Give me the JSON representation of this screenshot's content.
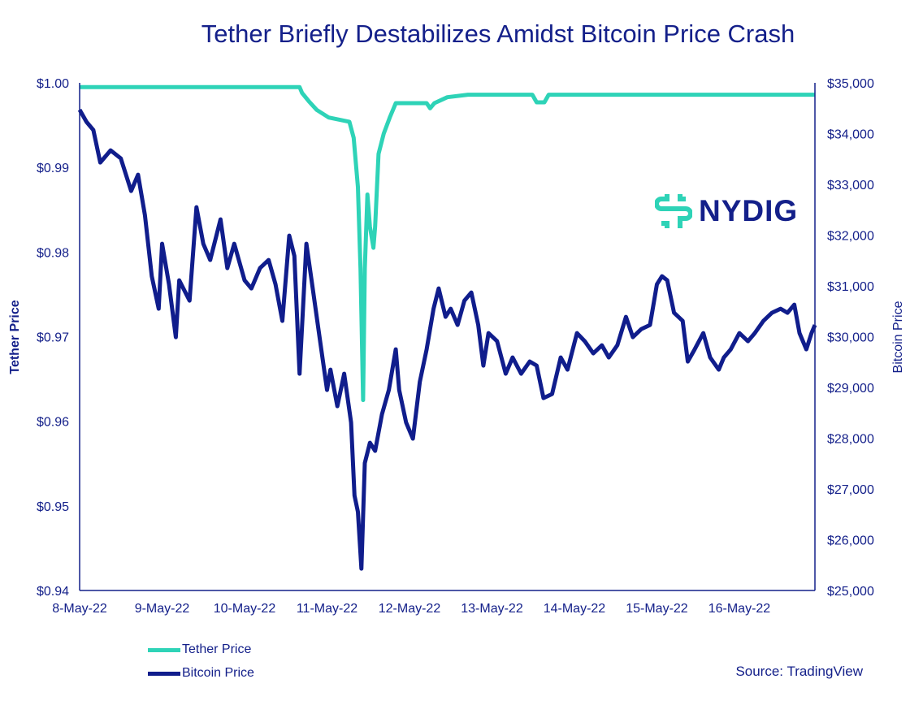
{
  "chart_data": {
    "type": "line",
    "title": "Tether Briefly Destabilizes Amidst Bitcoin Price Crash",
    "ylabel_left": "Tether Price",
    "ylabel_right": "Bitcoin Price",
    "ylim_left": [
      0.94,
      1.0
    ],
    "ylim_right": [
      25000,
      35000
    ],
    "xlim": [
      "2022-05-08T00:00",
      "2022-05-16T22:00"
    ],
    "left_ticks": [
      "$1.00",
      "$0.99",
      "$0.98",
      "$0.97",
      "$0.96",
      "$0.95",
      "$0.94"
    ],
    "left_tick_values": [
      1.0,
      0.99,
      0.98,
      0.97,
      0.96,
      0.95,
      0.94
    ],
    "right_ticks": [
      "$35,000",
      "$34,000",
      "$33,000",
      "$32,000",
      "$31,000",
      "$30,000",
      "$29,000",
      "$28,000",
      "$27,000",
      "$26,000",
      "$25,000"
    ],
    "right_tick_values": [
      35000,
      34000,
      33000,
      32000,
      31000,
      30000,
      29000,
      28000,
      27000,
      26000,
      25000
    ],
    "x_ticks": [
      "8-May-22",
      "9-May-22",
      "10-May-22",
      "11-May-22",
      "12-May-22",
      "13-May-22",
      "14-May-22",
      "15-May-22",
      "16-May-22"
    ],
    "x_tick_dates": [
      "2022-05-08T00:00",
      "2022-05-09T00:00",
      "2022-05-10T00:00",
      "2022-05-11T00:00",
      "2022-05-12T00:00",
      "2022-05-13T00:00",
      "2022-05-14T00:00",
      "2022-05-15T00:00",
      "2022-05-16T00:00"
    ],
    "grid": false,
    "legend_position": "bottom-left",
    "series": [
      {
        "name": "Tether Price",
        "axis": "left",
        "color": "#2ed3b7",
        "points": [
          [
            "2022-05-08T00:00",
            0.9995
          ],
          [
            "2022-05-10T16:00",
            0.9995
          ],
          [
            "2022-05-10T16:45",
            0.9988
          ],
          [
            "2022-05-10T18:45",
            0.9978
          ],
          [
            "2022-05-10T21:00",
            0.9968
          ],
          [
            "2022-05-11T00:30",
            0.9959
          ],
          [
            "2022-05-11T06:30",
            0.9954
          ],
          [
            "2022-05-11T07:45",
            0.9935
          ],
          [
            "2022-05-11T09:00",
            0.9877
          ],
          [
            "2022-05-11T09:45",
            0.978
          ],
          [
            "2022-05-11T10:30",
            0.9625
          ],
          [
            "2022-05-11T11:00",
            0.978
          ],
          [
            "2022-05-11T11:45",
            0.9868
          ],
          [
            "2022-05-11T12:30",
            0.983
          ],
          [
            "2022-05-11T13:30",
            0.9805
          ],
          [
            "2022-05-11T14:00",
            0.983
          ],
          [
            "2022-05-11T15:00",
            0.9916
          ],
          [
            "2022-05-11T16:30",
            0.994
          ],
          [
            "2022-05-11T18:15",
            0.9959
          ],
          [
            "2022-05-11T20:00",
            0.9976
          ],
          [
            "2022-05-12T05:00",
            0.9976
          ],
          [
            "2022-05-12T06:00",
            0.997
          ],
          [
            "2022-05-12T07:15",
            0.9976
          ],
          [
            "2022-05-12T11:00",
            0.9983
          ],
          [
            "2022-05-12T17:00",
            0.9986
          ],
          [
            "2022-05-13T11:45",
            0.9986
          ],
          [
            "2022-05-13T13:00",
            0.9977
          ],
          [
            "2022-05-13T15:15",
            0.9977
          ],
          [
            "2022-05-13T16:30",
            0.9986
          ],
          [
            "2022-05-16T22:00",
            0.9986
          ]
        ]
      },
      {
        "name": "Bitcoin Price",
        "axis": "right",
        "color": "#101d8c",
        "points": [
          [
            "2022-05-08T00:00",
            34470
          ],
          [
            "2022-05-08T02:00",
            34230
          ],
          [
            "2022-05-08T04:00",
            34070
          ],
          [
            "2022-05-08T06:00",
            33430
          ],
          [
            "2022-05-08T09:00",
            33670
          ],
          [
            "2022-05-08T12:00",
            33510
          ],
          [
            "2022-05-08T15:00",
            32870
          ],
          [
            "2022-05-08T17:00",
            33190
          ],
          [
            "2022-05-08T19:00",
            32390
          ],
          [
            "2022-05-08T21:00",
            31190
          ],
          [
            "2022-05-08T23:00",
            30550
          ],
          [
            "2022-05-09T00:00",
            31830
          ],
          [
            "2022-05-09T02:00",
            31030
          ],
          [
            "2022-05-09T04:00",
            29990
          ],
          [
            "2022-05-09T05:00",
            31110
          ],
          [
            "2022-05-09T08:00",
            30710
          ],
          [
            "2022-05-09T10:00",
            32550
          ],
          [
            "2022-05-09T12:00",
            31830
          ],
          [
            "2022-05-09T14:00",
            31510
          ],
          [
            "2022-05-09T17:00",
            32310
          ],
          [
            "2022-05-09T19:00",
            31350
          ],
          [
            "2022-05-09T21:00",
            31830
          ],
          [
            "2022-05-10T00:00",
            31110
          ],
          [
            "2022-05-10T02:00",
            30950
          ],
          [
            "2022-05-10T04:30",
            31350
          ],
          [
            "2022-05-10T07:00",
            31510
          ],
          [
            "2022-05-10T09:00",
            31030
          ],
          [
            "2022-05-10T11:00",
            30310
          ],
          [
            "2022-05-10T13:00",
            31990
          ],
          [
            "2022-05-10T14:30",
            31590
          ],
          [
            "2022-05-10T16:00",
            29270
          ],
          [
            "2022-05-10T18:00",
            31830
          ],
          [
            "2022-05-10T20:00",
            30870
          ],
          [
            "2022-05-10T22:00",
            29910
          ],
          [
            "2022-05-11T00:00",
            28950
          ],
          [
            "2022-05-11T01:00",
            29350
          ],
          [
            "2022-05-11T03:00",
            28630
          ],
          [
            "2022-05-11T05:00",
            29270
          ],
          [
            "2022-05-11T07:00",
            28310
          ],
          [
            "2022-05-11T08:00",
            26870
          ],
          [
            "2022-05-11T09:00",
            26550
          ],
          [
            "2022-05-11T10:00",
            25430
          ],
          [
            "2022-05-11T11:00",
            27510
          ],
          [
            "2022-05-11T12:30",
            27910
          ],
          [
            "2022-05-11T14:00",
            27750
          ],
          [
            "2022-05-11T16:00",
            28470
          ],
          [
            "2022-05-11T18:00",
            28950
          ],
          [
            "2022-05-11T20:00",
            29750
          ],
          [
            "2022-05-11T21:00",
            28950
          ],
          [
            "2022-05-11T23:00",
            28310
          ],
          [
            "2022-05-12T01:00",
            27990
          ],
          [
            "2022-05-12T03:00",
            29110
          ],
          [
            "2022-05-12T05:00",
            29750
          ],
          [
            "2022-05-12T07:00",
            30550
          ],
          [
            "2022-05-12T08:30",
            30950
          ],
          [
            "2022-05-12T10:30",
            30390
          ],
          [
            "2022-05-12T12:00",
            30550
          ],
          [
            "2022-05-12T14:00",
            30230
          ],
          [
            "2022-05-12T16:00",
            30710
          ],
          [
            "2022-05-12T18:00",
            30870
          ],
          [
            "2022-05-12T20:00",
            30230
          ],
          [
            "2022-05-12T21:30",
            29430
          ],
          [
            "2022-05-12T23:00",
            30070
          ],
          [
            "2022-05-13T01:30",
            29910
          ],
          [
            "2022-05-13T04:00",
            29270
          ],
          [
            "2022-05-13T06:00",
            29590
          ],
          [
            "2022-05-13T08:30",
            29270
          ],
          [
            "2022-05-13T11:00",
            29510
          ],
          [
            "2022-05-13T13:00",
            29430
          ],
          [
            "2022-05-13T15:00",
            28790
          ],
          [
            "2022-05-13T17:30",
            28870
          ],
          [
            "2022-05-13T20:00",
            29590
          ],
          [
            "2022-05-13T22:00",
            29350
          ],
          [
            "2022-05-14T00:45",
            30070
          ],
          [
            "2022-05-14T03:00",
            29910
          ],
          [
            "2022-05-14T05:30",
            29670
          ],
          [
            "2022-05-14T08:00",
            29830
          ],
          [
            "2022-05-14T10:00",
            29590
          ],
          [
            "2022-05-14T12:30",
            29830
          ],
          [
            "2022-05-14T15:00",
            30390
          ],
          [
            "2022-05-14T17:00",
            29990
          ],
          [
            "2022-05-14T19:30",
            30150
          ],
          [
            "2022-05-14T22:00",
            30230
          ],
          [
            "2022-05-15T00:00",
            31030
          ],
          [
            "2022-05-15T01:30",
            31190
          ],
          [
            "2022-05-15T03:00",
            31110
          ],
          [
            "2022-05-15T05:00",
            30470
          ],
          [
            "2022-05-15T07:30",
            30310
          ],
          [
            "2022-05-15T09:00",
            29510
          ],
          [
            "2022-05-15T11:00",
            29750
          ],
          [
            "2022-05-15T13:30",
            30070
          ],
          [
            "2022-05-15T15:30",
            29590
          ],
          [
            "2022-05-15T18:00",
            29350
          ],
          [
            "2022-05-15T19:30",
            29590
          ],
          [
            "2022-05-15T21:30",
            29750
          ],
          [
            "2022-05-16T00:00",
            30070
          ],
          [
            "2022-05-16T02:30",
            29910
          ],
          [
            "2022-05-16T04:30",
            30070
          ],
          [
            "2022-05-16T07:00",
            30310
          ],
          [
            "2022-05-16T09:30",
            30470
          ],
          [
            "2022-05-16T12:00",
            30550
          ],
          [
            "2022-05-16T14:00",
            30470
          ],
          [
            "2022-05-16T16:00",
            30630
          ],
          [
            "2022-05-16T17:30",
            30070
          ],
          [
            "2022-05-16T19:30",
            29750
          ],
          [
            "2022-05-16T21:00",
            30070
          ],
          [
            "2022-05-16T22:00",
            30230
          ]
        ]
      }
    ]
  },
  "logo": {
    "text": "NYDIG",
    "color": "#2ed3b7"
  },
  "source": "Source: TradingView",
  "colors": {
    "axis": "#14208a",
    "tether": "#2ed3b7",
    "bitcoin": "#101d8c"
  }
}
